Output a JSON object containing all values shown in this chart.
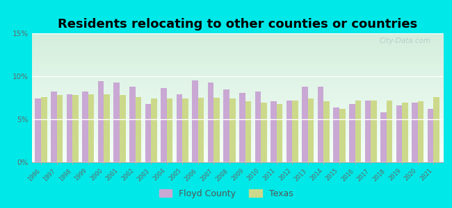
{
  "title": "Residents relocating to other counties or countries",
  "years": [
    1996,
    1997,
    1998,
    1999,
    2000,
    2001,
    2002,
    2003,
    2004,
    2005,
    2006,
    2007,
    2008,
    2009,
    2010,
    2011,
    2012,
    2013,
    2014,
    2015,
    2016,
    2017,
    2018,
    2019,
    2020,
    2021
  ],
  "floyd_county": [
    7.4,
    8.2,
    7.9,
    8.2,
    9.4,
    9.3,
    8.8,
    6.8,
    8.6,
    7.9,
    9.5,
    9.3,
    8.5,
    8.1,
    8.2,
    7.1,
    7.2,
    8.8,
    8.8,
    6.4,
    6.8,
    7.2,
    5.8,
    6.6,
    6.9,
    6.2
  ],
  "texas": [
    7.6,
    7.8,
    7.8,
    7.9,
    7.9,
    7.8,
    7.6,
    7.4,
    7.4,
    7.4,
    7.5,
    7.5,
    7.4,
    7.1,
    6.9,
    6.8,
    7.2,
    7.4,
    7.1,
    6.2,
    7.2,
    7.2,
    7.2,
    6.9,
    7.1,
    7.6
  ],
  "floyd_color": "#c9a8d4",
  "texas_color": "#ccd98a",
  "bg_color": "#00e8e8",
  "ylim": [
    0,
    15
  ],
  "yticks": [
    0,
    5,
    10,
    15
  ],
  "ytick_labels": [
    "0%",
    "5%",
    "10%",
    "15%"
  ],
  "title_fontsize": 13,
  "watermark": "City-Data.com"
}
